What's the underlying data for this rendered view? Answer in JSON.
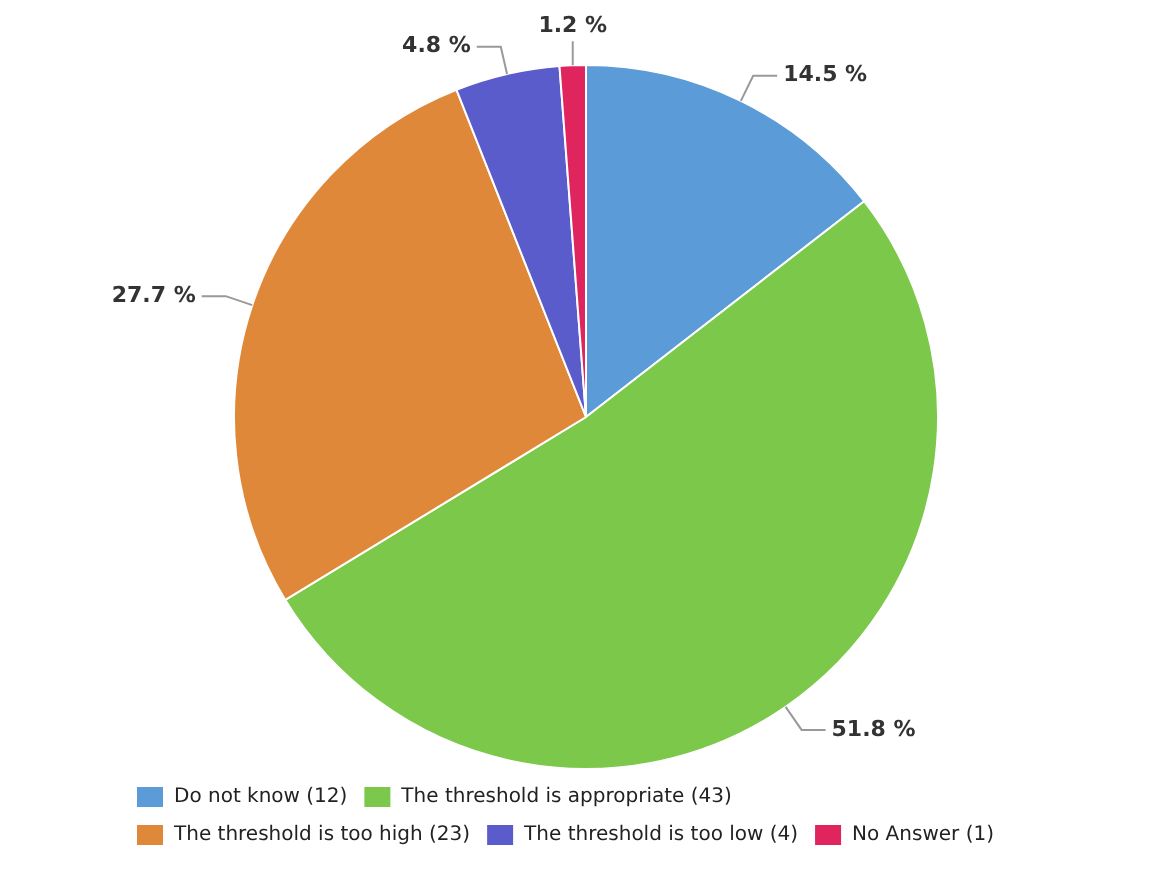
{
  "chart_data": {
    "type": "pie",
    "categories": [
      "Do not know (12)",
      "The threshold is appropriate (43)",
      "The threshold is too high (23)",
      "The threshold is too low (4)",
      "No Answer (1)"
    ],
    "values": [
      14.5,
      51.8,
      27.7,
      4.8,
      1.2
    ],
    "colors": [
      "#5b9bd8",
      "#7cc84a",
      "#e0883a",
      "#5a5ccc",
      "#e0245e"
    ],
    "value_labels": [
      "14.5 %",
      "51.8 %",
      "27.7 %",
      "4.8 %",
      "1.2 %"
    ],
    "legend": "bottom"
  }
}
